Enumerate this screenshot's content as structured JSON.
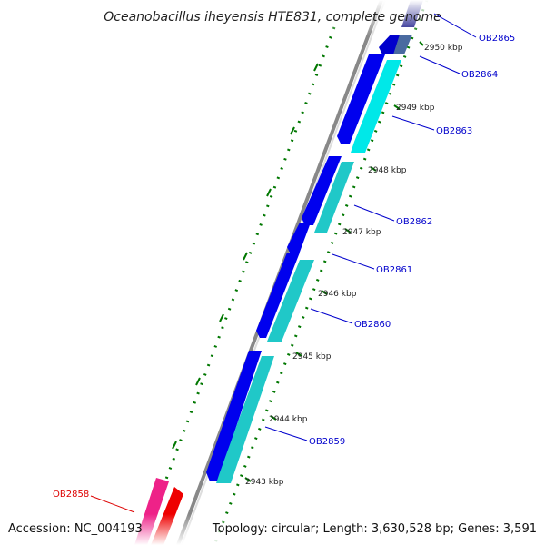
{
  "title": "Oceanobacillus iheyensis HTE831, complete genome",
  "accession": "Accession: NC_004193",
  "summary": "Topology: circular; Length: 3,630,528 bp; Genes: 3,591",
  "ticks": [
    "2943 kbp",
    "2944 kbp",
    "2945 kbp",
    "2946 kbp",
    "2947 kbp",
    "2948 kbp",
    "2949 kbp",
    "2950 kbp"
  ],
  "genes": [
    {
      "label": "OB2865",
      "color": "#0000cc",
      "strand": "reverse"
    },
    {
      "label": "OB2864",
      "color": "#4a6aa0",
      "strand": "forward"
    },
    {
      "label": "OB2863",
      "color": "#00e8e8",
      "strand": "forward"
    },
    {
      "label": "OB2862",
      "color": "#20c8c8",
      "strand": "forward"
    },
    {
      "label": "OB2861",
      "color": "#0000ee",
      "strand": "reverse"
    },
    {
      "label": "OB2860",
      "color": "#20c8c8",
      "strand": "forward"
    },
    {
      "label": "OB2859",
      "color": "#20c8c8",
      "strand": "forward"
    },
    {
      "label": "OB2858",
      "color": "#ee2288",
      "strand": "reverse"
    }
  ],
  "colors": {
    "label_blue": "#0000cc",
    "label_red": "#dd0000",
    "tick_green": "#007700",
    "backbone": "#888888"
  }
}
